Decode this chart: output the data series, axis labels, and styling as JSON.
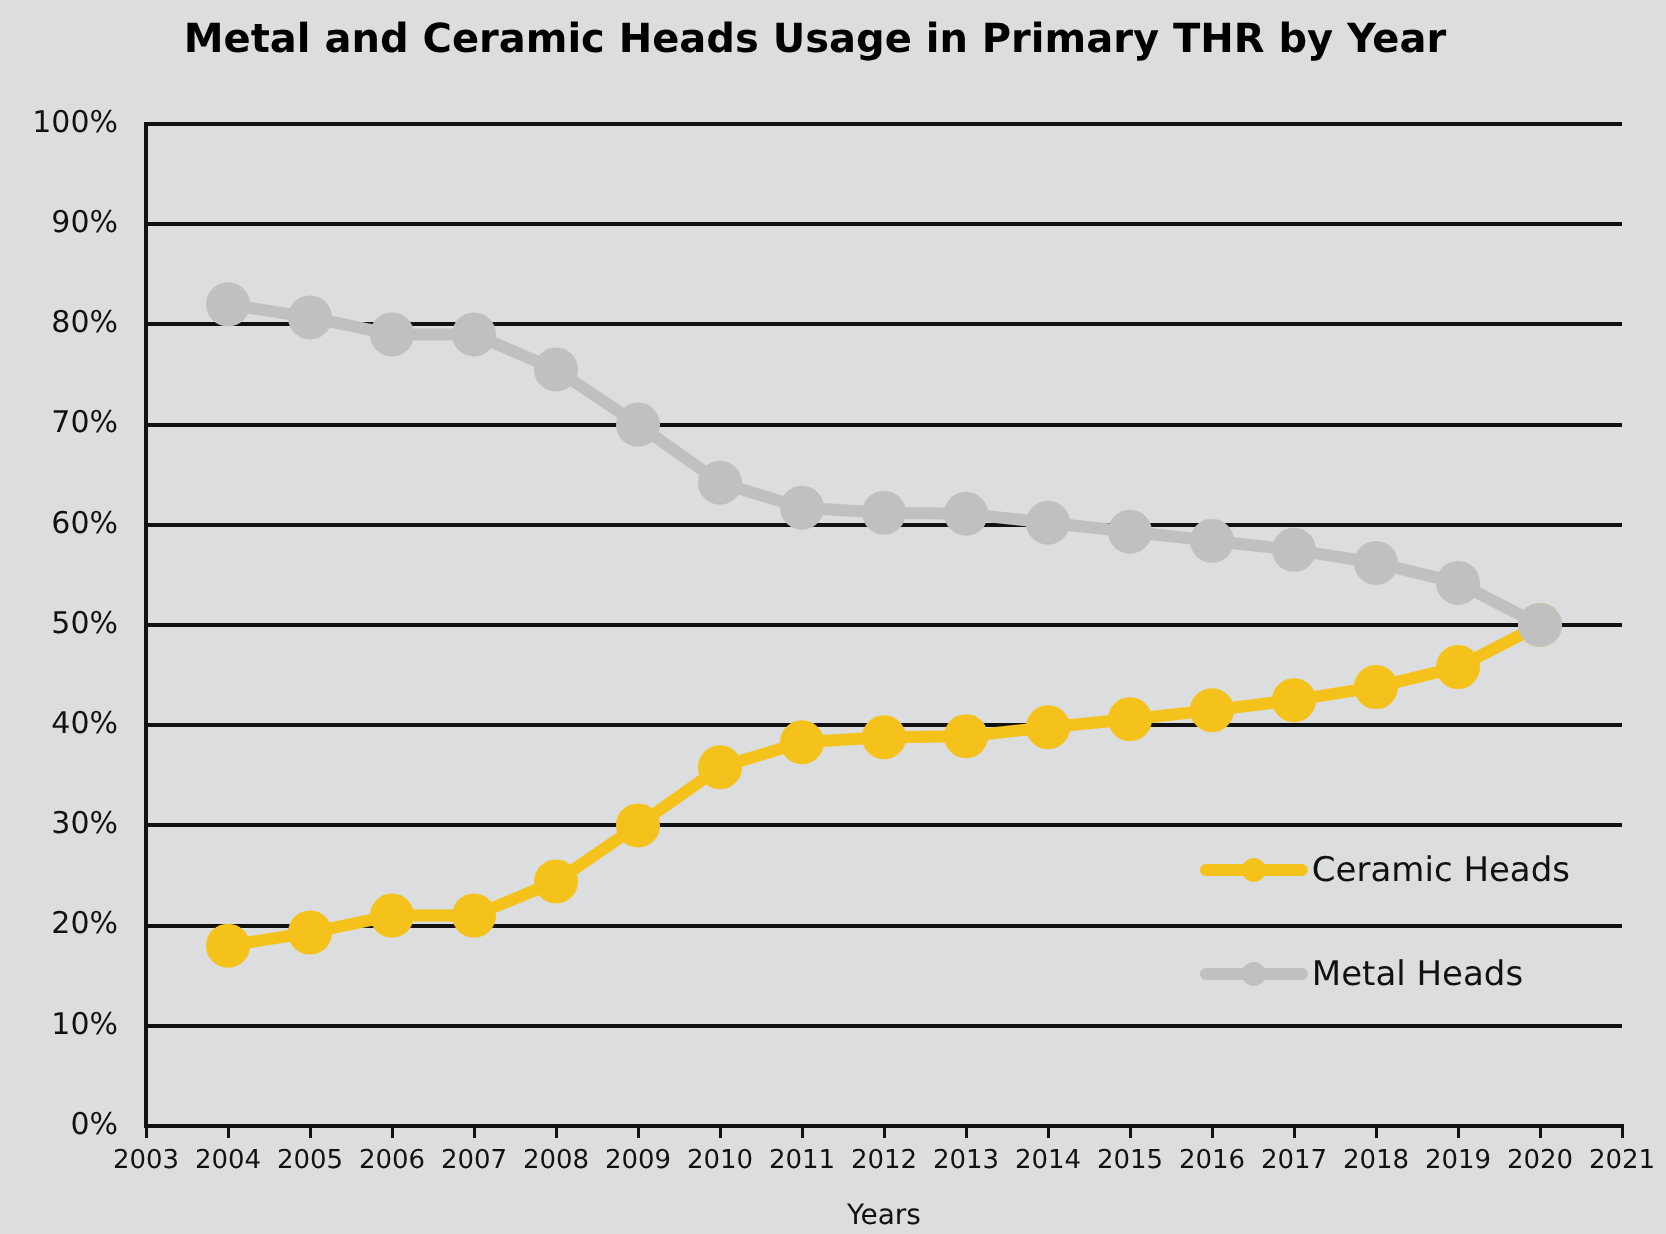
{
  "chart_data": {
    "type": "line",
    "title": "Metal and Ceramic Heads Usage in Primary THR by Year",
    "xlabel": "Years",
    "x": [
      2004,
      2005,
      2006,
      2007,
      2008,
      2009,
      2010,
      2011,
      2012,
      2013,
      2014,
      2015,
      2016,
      2017,
      2018,
      2019,
      2020
    ],
    "series": [
      {
        "name": "Ceramic Heads",
        "color": "#f5c21b",
        "values": [
          18,
          19.3,
          21,
          21,
          24.4,
          30,
          35.8,
          38.3,
          38.8,
          38.9,
          39.8,
          40.6,
          41.5,
          42.5,
          43.8,
          45.8,
          50
        ]
      },
      {
        "name": "Metal Heads",
        "color": "#c0c0c0",
        "values": [
          82,
          80.7,
          79,
          79,
          75.5,
          70,
          64.2,
          61.7,
          61.2,
          61.1,
          60.2,
          59.3,
          58.4,
          57.5,
          56.2,
          54.2,
          50
        ]
      }
    ],
    "xlim": [
      2003,
      2021
    ],
    "xticks": [
      2003,
      2004,
      2005,
      2006,
      2007,
      2008,
      2009,
      2010,
      2011,
      2012,
      2013,
      2014,
      2015,
      2016,
      2017,
      2018,
      2019,
      2020,
      2021
    ],
    "ylim": [
      0,
      100
    ],
    "yticks": [
      {
        "value": 0,
        "label": "0%"
      },
      {
        "value": 10,
        "label": "10%"
      },
      {
        "value": 20,
        "label": "20%"
      },
      {
        "value": 30,
        "label": "30%"
      },
      {
        "value": 40,
        "label": "40%"
      },
      {
        "value": 50,
        "label": "50%"
      },
      {
        "value": 60,
        "label": "60%"
      },
      {
        "value": 70,
        "label": "70%"
      },
      {
        "value": 80,
        "label": "80%"
      },
      {
        "value": 90,
        "label": "90%"
      },
      {
        "value": 100,
        "label": "100%"
      }
    ],
    "grid": "y",
    "legend": "bottom right",
    "marker": "circle",
    "line_style": "solid"
  }
}
